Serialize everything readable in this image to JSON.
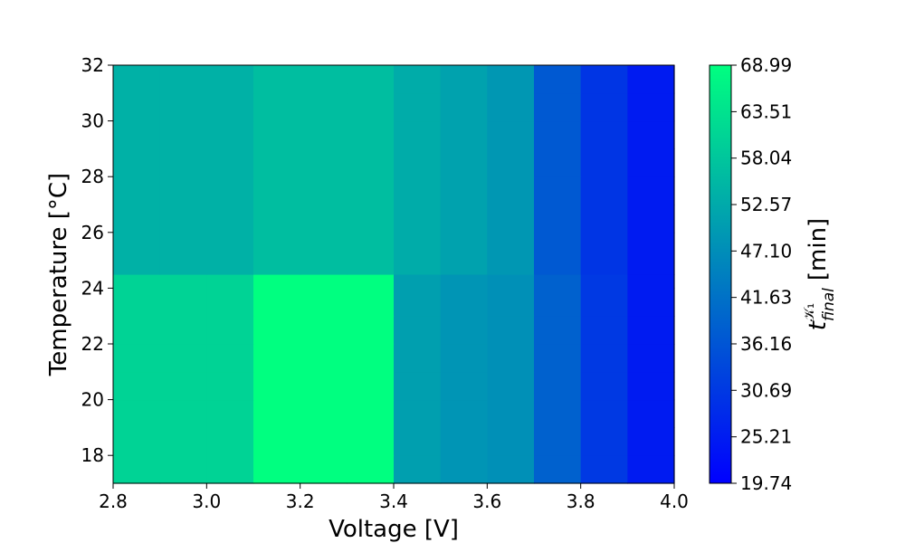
{
  "chart_data": {
    "type": "heatmap",
    "title": "",
    "xlabel": "Voltage [V]",
    "ylabel": "Temperature [°C]",
    "xlim": [
      2.8,
      4.0
    ],
    "ylim": [
      17,
      32
    ],
    "x_ticks": [
      "2.8",
      "3.0",
      "3.2",
      "3.4",
      "3.6",
      "3.8",
      "4.0"
    ],
    "y_ticks": [
      "18",
      "20",
      "22",
      "24",
      "26",
      "28",
      "30",
      "32"
    ],
    "x_edges": [
      2.8,
      2.9,
      3.0,
      3.1,
      3.2,
      3.3,
      3.4,
      3.5,
      3.6,
      3.7,
      3.8,
      3.9,
      4.0
    ],
    "y_edges": [
      17,
      18,
      19,
      20,
      21,
      22,
      23,
      24,
      24.5,
      26,
      27,
      28,
      29,
      30,
      31,
      32
    ],
    "values": [
      [
        60.5,
        60.5,
        60.5,
        69.0,
        69.0,
        69.0,
        50.5,
        48.5,
        47.5,
        38.5,
        30.7,
        25.0
      ],
      [
        60.5,
        60.5,
        60.5,
        69.0,
        69.0,
        69.0,
        50.5,
        48.5,
        47.5,
        38.5,
        30.7,
        25.0
      ],
      [
        60.5,
        60.5,
        60.5,
        69.0,
        69.0,
        69.0,
        50.5,
        48.5,
        47.5,
        38.5,
        30.7,
        25.0
      ],
      [
        60.5,
        60.5,
        60.5,
        69.0,
        69.0,
        69.0,
        50.5,
        48.5,
        47.5,
        38.5,
        30.7,
        25.0
      ],
      [
        60.5,
        60.5,
        60.5,
        69.0,
        69.0,
        69.0,
        50.5,
        48.5,
        47.5,
        38.5,
        30.7,
        25.0
      ],
      [
        60.5,
        60.5,
        60.5,
        69.0,
        69.0,
        69.0,
        50.5,
        48.5,
        47.5,
        38.5,
        30.7,
        25.0
      ],
      [
        60.5,
        60.5,
        60.5,
        69.0,
        69.0,
        69.0,
        50.5,
        48.5,
        47.5,
        38.5,
        30.7,
        25.0
      ],
      [
        60.5,
        60.5,
        60.5,
        69.0,
        69.0,
        69.0,
        50.5,
        48.5,
        47.5,
        38.5,
        30.7,
        25.0
      ],
      [
        54.0,
        54.0,
        54.0,
        56.5,
        56.5,
        56.5,
        53.0,
        51.0,
        49.0,
        37.0,
        30.0,
        25.0
      ],
      [
        54.0,
        54.0,
        54.0,
        56.5,
        56.5,
        56.5,
        53.0,
        51.0,
        49.0,
        37.0,
        30.0,
        25.0
      ],
      [
        54.0,
        54.0,
        54.0,
        56.5,
        56.5,
        56.5,
        53.0,
        51.0,
        49.0,
        37.0,
        30.0,
        25.0
      ],
      [
        54.0,
        54.0,
        54.0,
        56.5,
        56.5,
        56.5,
        53.0,
        51.0,
        49.0,
        37.0,
        30.0,
        25.0
      ],
      [
        54.0,
        54.0,
        54.0,
        56.5,
        56.5,
        56.5,
        53.0,
        51.0,
        49.0,
        37.0,
        30.0,
        25.0
      ],
      [
        54.0,
        54.0,
        54.0,
        56.5,
        56.5,
        56.5,
        53.0,
        51.0,
        49.0,
        37.0,
        30.0,
        25.0
      ],
      [
        54.0,
        54.0,
        54.0,
        56.5,
        56.5,
        56.5,
        53.0,
        51.0,
        49.0,
        37.0,
        30.0,
        25.0
      ]
    ],
    "colormap": "winter",
    "colormap_low": "#0000ff",
    "colormap_high": "#00ff80",
    "colorbar": {
      "label_main": "t",
      "label_sup": "𝒦₁",
      "label_sub": "final",
      "label_unit": "[min]",
      "min": 19.74,
      "max": 68.99,
      "ticks": [
        "19.74",
        "25.21",
        "30.69",
        "36.16",
        "41.63",
        "47.10",
        "52.57",
        "58.04",
        "63.51",
        "68.99"
      ]
    },
    "grid": false,
    "legend": "none"
  }
}
